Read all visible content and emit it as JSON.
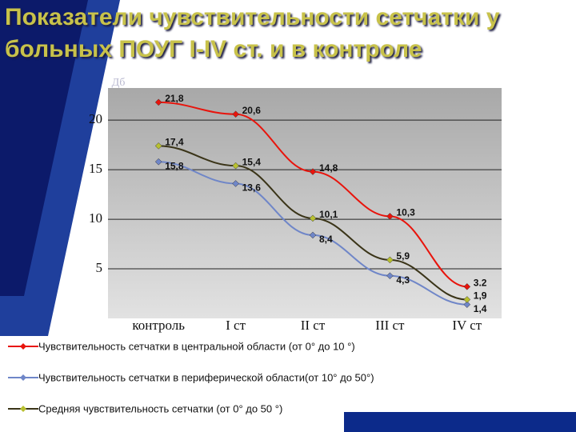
{
  "chart_data": {
    "type": "line",
    "title": "Показатели чувствительности сетчатки у больных ПОУГ I-IV ст. и в контроле",
    "y_label": "Дб",
    "categories": [
      "контроль",
      "I ст",
      "II ст",
      "III ст",
      "IV ст"
    ],
    "ylim": [
      0,
      23
    ],
    "yticks": [
      5,
      10,
      15,
      20
    ],
    "grid": true,
    "series": [
      {
        "name": "Чувствительность сетчатки в центральной области (от 0° до 10 °)",
        "color": "#e8140c",
        "values": [
          21.8,
          20.6,
          14.8,
          10.3,
          3.2
        ],
        "value_labels": [
          "21,8",
          "20,6",
          "14,8",
          "10,3",
          "3.2"
        ]
      },
      {
        "name": "Чувствительность сетчатки в периферической области(от 10° до 50°)",
        "color": "#6f86c8",
        "values": [
          15.8,
          13.6,
          8.4,
          4.3,
          1.4
        ],
        "value_labels": [
          "15,8",
          "13,6",
          "8,4",
          "4,3",
          "1,4"
        ]
      },
      {
        "name": "Средняя чувствительность сетчатки  (от 0° до 50 °)",
        "color": "#3a3418",
        "values": [
          17.4,
          15.4,
          10.1,
          5.9,
          1.9
        ],
        "value_labels": [
          "17,4",
          "15,4",
          "10,1",
          "5,9",
          "1,9"
        ]
      }
    ]
  }
}
